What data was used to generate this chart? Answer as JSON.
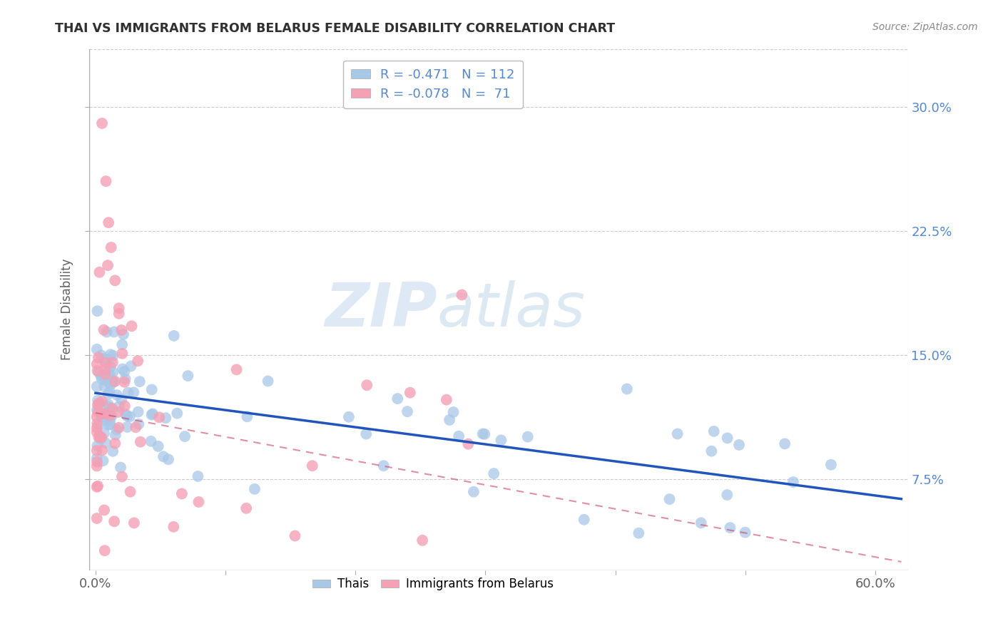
{
  "title": "THAI VS IMMIGRANTS FROM BELARUS FEMALE DISABILITY CORRELATION CHART",
  "source": "Source: ZipAtlas.com",
  "ylabel": "Female Disability",
  "xlim": [
    -0.005,
    0.625
  ],
  "ylim": [
    0.02,
    0.335
  ],
  "x_tick_vals": [
    0.0,
    0.1,
    0.2,
    0.3,
    0.4,
    0.5,
    0.6
  ],
  "y_tick_vals": [
    0.075,
    0.15,
    0.225,
    0.3
  ],
  "legend_blue_r": "-0.471",
  "legend_blue_n": "112",
  "legend_pink_r": "-0.078",
  "legend_pink_n": " 71",
  "watermark_zip": "ZIP",
  "watermark_atlas": "atlas",
  "blue_color": "#a8c8e8",
  "pink_color": "#f4a0b5",
  "line_blue_color": "#2255bb",
  "line_pink_color": "#cc4466",
  "grid_color": "#cccccc",
  "bg_color": "#ffffff",
  "title_color": "#303030",
  "axis_label_color": "#5588cc",
  "tick_color": "#606060",
  "blue_line_y_start": 0.127,
  "blue_line_y_end": 0.063,
  "pink_line_y_start": 0.115,
  "pink_line_y_end": 0.025
}
